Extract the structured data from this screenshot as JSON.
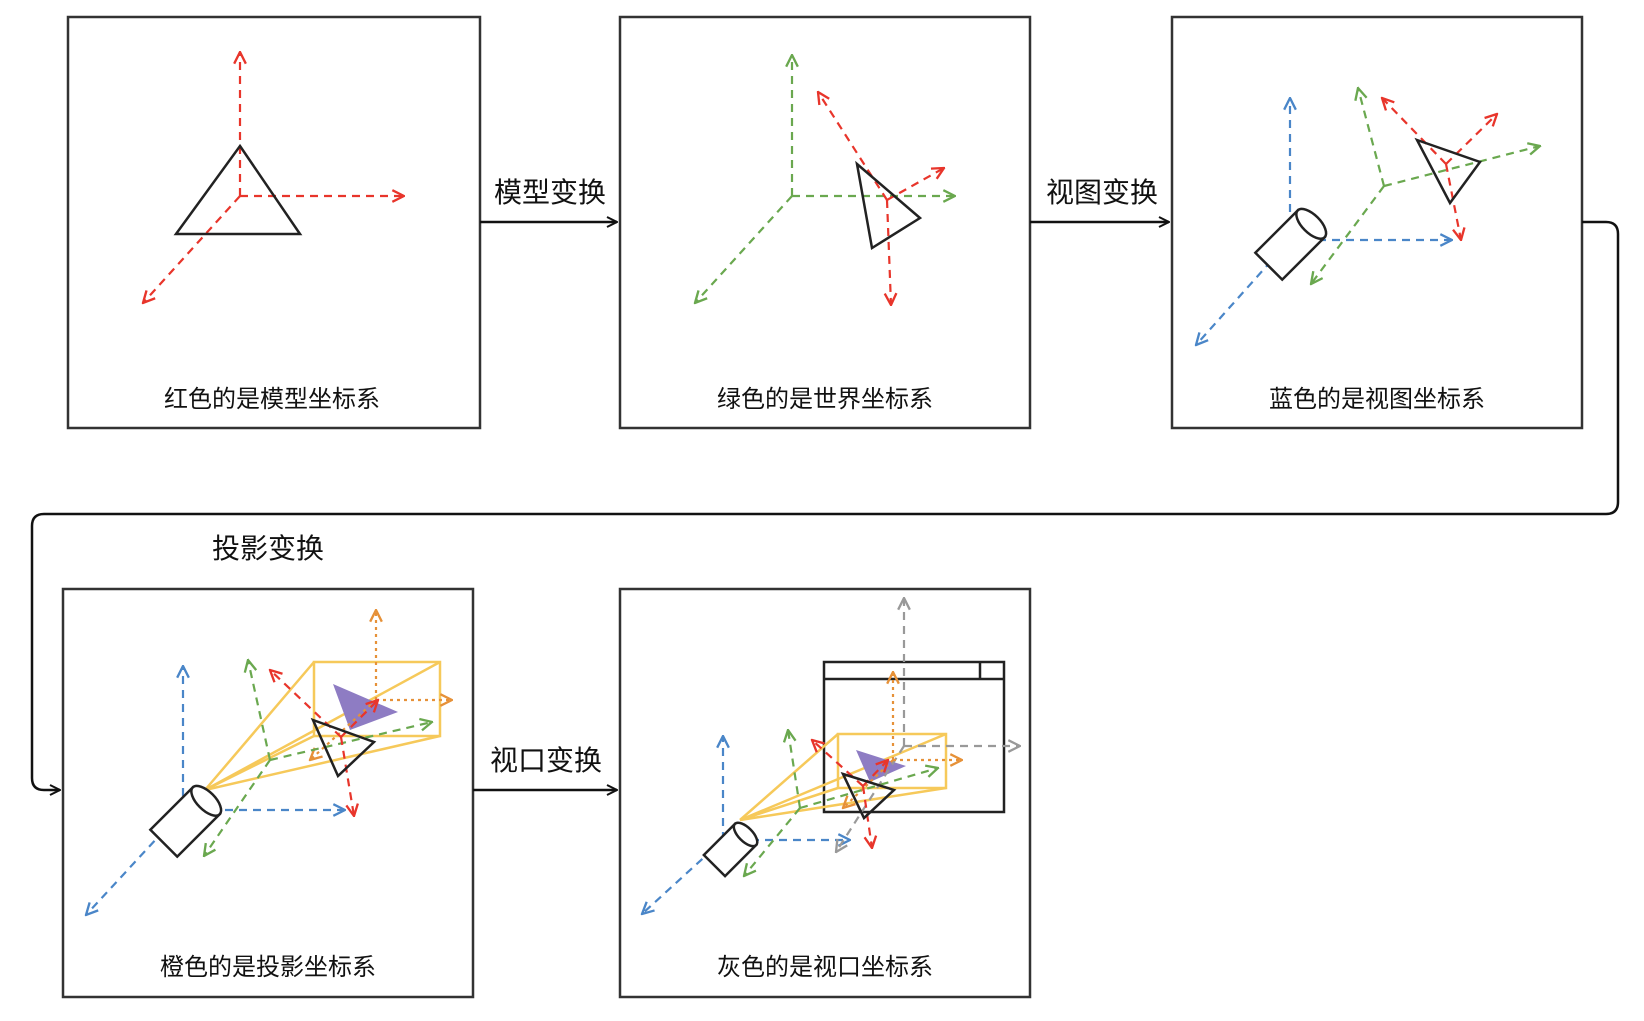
{
  "colors": {
    "model": "#e8352b",
    "world": "#6aa84f",
    "view": "#4a86c8",
    "projection": "#e69138",
    "viewport": "#999999",
    "frustum": "#f6c95a",
    "projected_face": "#8e7cc3",
    "stroke": "#222222"
  },
  "panels": [
    {
      "id": "model",
      "caption": "红色的是模型坐标系"
    },
    {
      "id": "world",
      "caption": "绿色的是世界坐标系"
    },
    {
      "id": "view",
      "caption": "蓝色的是视图坐标系"
    },
    {
      "id": "projection",
      "caption": "橙色的是投影坐标系"
    },
    {
      "id": "viewport",
      "caption": "灰色的是视口坐标系"
    }
  ],
  "transforms": [
    {
      "id": "model-transform",
      "label": "模型变换"
    },
    {
      "id": "view-transform",
      "label": "视图变换"
    },
    {
      "id": "projection-transform",
      "label": "投影变换"
    },
    {
      "id": "viewport-transform",
      "label": "视口变换"
    }
  ],
  "icons": {
    "triangle": "triangle-object-icon",
    "camera": "camera-cylinder-icon",
    "window": "screen-window-icon"
  }
}
